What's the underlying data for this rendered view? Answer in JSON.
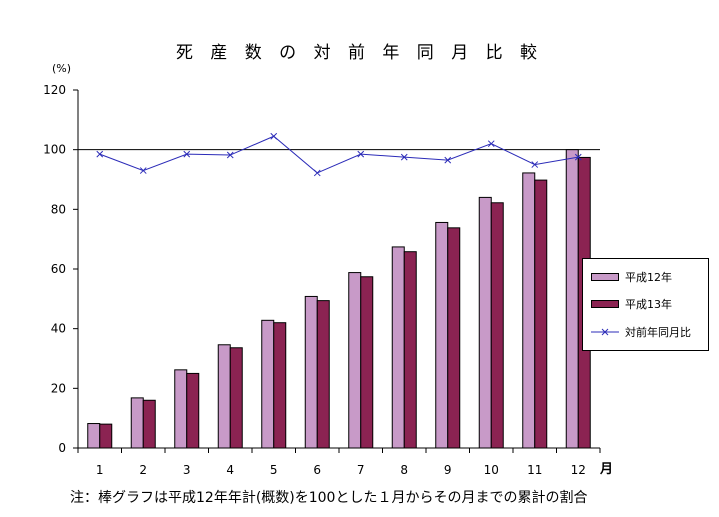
{
  "chart_data": {
    "type": "bar",
    "title": "死 産 数 の 対 前 年 同 月 比 較",
    "y_unit": "(%)",
    "x_unit": "月",
    "categories": [
      "1",
      "2",
      "3",
      "4",
      "5",
      "6",
      "7",
      "8",
      "9",
      "10",
      "11",
      "12"
    ],
    "ylim": [
      0,
      120
    ],
    "yticks": [
      0,
      20,
      40,
      60,
      80,
      100,
      120
    ],
    "reference_line": 100,
    "series": [
      {
        "name": "平成12年",
        "type": "bar",
        "color": "#c89ac8",
        "values": [
          8.2,
          16.8,
          26.2,
          34.6,
          42.8,
          50.8,
          58.8,
          67.4,
          75.6,
          84.0,
          92.2,
          100.0
        ]
      },
      {
        "name": "平成13年",
        "type": "bar",
        "color": "#8b2352",
        "values": [
          8.0,
          16.0,
          25.0,
          33.6,
          42.0,
          49.4,
          57.4,
          65.8,
          73.8,
          82.2,
          89.8,
          97.4
        ]
      },
      {
        "name": "対前年同月比",
        "type": "line",
        "color": "#2b2bb8",
        "values": [
          98.5,
          93.0,
          98.5,
          98.2,
          104.5,
          92.2,
          98.5,
          97.5,
          96.5,
          102.0,
          95.0,
          97.5
        ]
      }
    ],
    "grid": false,
    "legend_position": "right"
  },
  "note": "注：棒グラフは平成12年年計(概数)を100とした１月からその月までの累計の割合"
}
